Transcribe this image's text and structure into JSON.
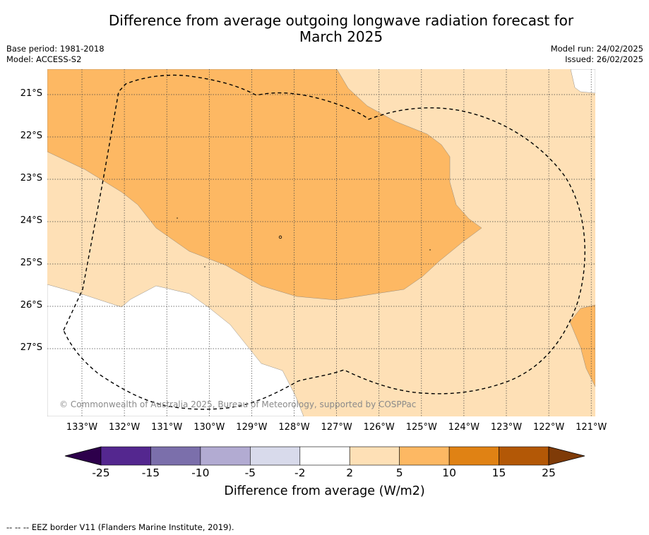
{
  "header": {
    "title_line1": "Difference from average outgoing longwave radiation forecast for",
    "title_line2": "March 2025",
    "base_period": "Base period: 1981-2018",
    "model": "Model: ACCESS-S2",
    "model_run": "Model run: 24/02/2025",
    "issued": "Issued: 26/02/2025"
  },
  "map": {
    "copyright": "© Commonwealth of Australia 2025, Bureau of Meteorology, supported by COSPPac",
    "footer": "-- -- -- EEZ border V11 (Flanders Marine Institute, 2019)."
  },
  "chart_data": {
    "type": "heatmap",
    "title": "Difference from average outgoing longwave radiation forecast for March 2025",
    "lat_ticks": [
      "21°S",
      "22°S",
      "23°S",
      "24°S",
      "25°S",
      "26°S",
      "27°S"
    ],
    "lon_ticks": [
      "133°W",
      "132°W",
      "131°W",
      "130°W",
      "129°W",
      "128°W",
      "127°W",
      "126°W",
      "125°W",
      "124°W",
      "123°W",
      "122°W",
      "121°W"
    ],
    "colorbar": {
      "label": "Difference from average (W/m2)",
      "ticks": [
        "-25",
        "-15",
        "-10",
        "-5",
        "-2",
        "2",
        "5",
        "10",
        "15",
        "25"
      ],
      "bins": [
        {
          "range": [
            -25,
            -15
          ],
          "color": "#54278f"
        },
        {
          "range": [
            -15,
            -10
          ],
          "color": "#7b6fab"
        },
        {
          "range": [
            -10,
            -5
          ],
          "color": "#b2abd2"
        },
        {
          "range": [
            -5,
            -2
          ],
          "color": "#d8daeb"
        },
        {
          "range": [
            -2,
            2
          ],
          "color": "#ffffff"
        },
        {
          "range": [
            2,
            5
          ],
          "color": "#fee0b6"
        },
        {
          "range": [
            5,
            10
          ],
          "color": "#fdb863"
        },
        {
          "range": [
            10,
            15
          ],
          "color": "#e08214"
        },
        {
          "range": [
            15,
            25
          ],
          "color": "#b35806"
        }
      ],
      "under_color": "#2d004b",
      "over_color": "#7f3b08"
    },
    "regions": [
      {
        "bin": "5 to 10",
        "color": "#fdb863"
      },
      {
        "bin": "2 to 5",
        "color": "#fee0b6"
      },
      {
        "bin": "-2 to 2",
        "color": "#ffffff"
      }
    ]
  }
}
